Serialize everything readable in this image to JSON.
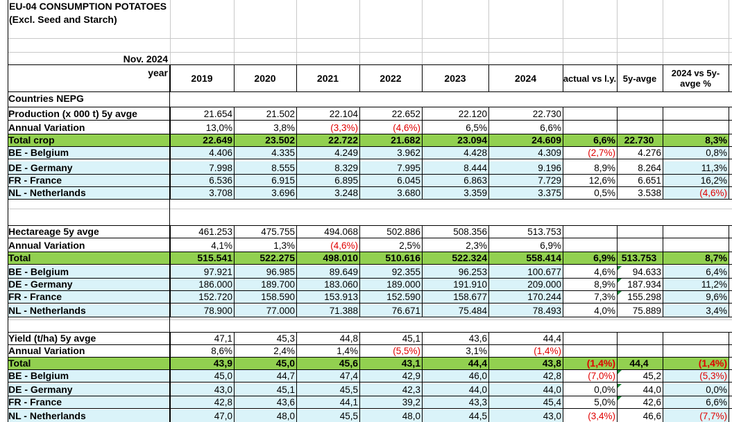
{
  "title": "EU-04 CONSUMPTION POTATOES (Excl. Seed and Starch)",
  "report_month": "Nov. 2024",
  "year_label": "year",
  "columns": [
    "2019",
    "2020",
    "2021",
    "2022",
    "2023",
    "2024",
    "actual vs l.y.",
    "5y-avge",
    "2024 vs 5y-avge %"
  ],
  "countries_label": "Countries NEPG",
  "sections": [
    {
      "rows": [
        {
          "label": "Production (x 000 t) 5y avge",
          "style": "plain",
          "values": [
            "21.654",
            "21.502",
            "22.104",
            "22.652",
            "22.120",
            "22.730",
            "",
            "",
            ""
          ]
        },
        {
          "label": "Annual Variation",
          "style": "plain",
          "values": [
            "13,0%",
            "3,8%",
            "(3,3%)",
            "(4,6%)",
            "6,5%",
            "6,6%",
            "",
            "",
            ""
          ]
        },
        {
          "label": "Total crop",
          "style": "total",
          "values": [
            "22.649",
            "23.502",
            "22.722",
            "21.682",
            "23.094",
            "24.609",
            "6,6%",
            "22.730",
            "8,3%"
          ]
        },
        {
          "label": "BE - Belgium",
          "style": "country",
          "values": [
            "4.406",
            "4.335",
            "4.249",
            "3.962",
            "4.428",
            "4.309",
            "(2,7%)",
            "4.276",
            "0,8%"
          ]
        },
        {
          "label": "DE - Germany",
          "style": "country",
          "values": [
            "7.998",
            "8.555",
            "8.329",
            "7.995",
            "8.444",
            "9.196",
            "8,9%",
            "8.264",
            "11,3%"
          ]
        },
        {
          "label": "FR - France",
          "style": "country",
          "values": [
            "6.536",
            "6.915",
            "6.895",
            "6.045",
            "6.863",
            "7.729",
            "12,6%",
            "6.651",
            "16,2%"
          ]
        },
        {
          "label": "NL - Netherlands",
          "style": "country",
          "values": [
            "3.708",
            "3.696",
            "3.248",
            "3.680",
            "3.359",
            "3.375",
            "0,5%",
            "3.538",
            "(4,6%)"
          ]
        }
      ]
    },
    {
      "rows": [
        {
          "label": "Hectareage 5y avge",
          "style": "plain",
          "values": [
            "461.253",
            "475.755",
            "494.068",
            "502.886",
            "508.356",
            "513.753",
            "",
            "",
            ""
          ]
        },
        {
          "label": "Annual Variation",
          "style": "plain",
          "values": [
            "4,1%",
            "1,3%",
            "(4,6%)",
            "2,5%",
            "2,3%",
            "6,9%",
            "",
            "",
            ""
          ]
        },
        {
          "label": "Total",
          "style": "total",
          "values": [
            "515.541",
            "522.275",
            "498.010",
            "510.616",
            "522.324",
            "558.414",
            "6,9%",
            "513.753",
            "8,7%"
          ]
        },
        {
          "label": "BE - Belgium",
          "style": "country",
          "values": [
            "97.921",
            "96.985",
            "89.649",
            "92.355",
            "96.253",
            "100.677",
            "4,6%",
            "94.633",
            "6,4%"
          ]
        },
        {
          "label": "DE - Germany",
          "style": "country",
          "values": [
            "186.000",
            "189.700",
            "183.060",
            "189.000",
            "191.910",
            "209.000",
            "8,9%",
            "187.934",
            "11,2%"
          ]
        },
        {
          "label": "FR - France",
          "style": "country",
          "values": [
            "152.720",
            "158.590",
            "153.913",
            "152.590",
            "158.677",
            "170.244",
            "7,3%",
            "155.298",
            "9,6%"
          ]
        },
        {
          "label": "NL - Netherlands",
          "style": "country",
          "values": [
            "78.900",
            "77.000",
            "71.388",
            "76.671",
            "75.484",
            "78.493",
            "4,0%",
            "75.889",
            "3,4%"
          ]
        }
      ]
    },
    {
      "rows": [
        {
          "label": "Yield (t/ha) 5y avge",
          "style": "plain",
          "values": [
            "47,1",
            "45,3",
            "44,8",
            "45,1",
            "43,6",
            "44,4",
            "",
            "",
            ""
          ]
        },
        {
          "label": "Annual Variation",
          "style": "plain",
          "values": [
            "8,6%",
            "2,4%",
            "1,4%",
            "(5,5%)",
            "3,1%",
            "(1,4%)",
            "",
            "",
            ""
          ]
        },
        {
          "label": "Total",
          "style": "total",
          "values": [
            "43,9",
            "45,0",
            "45,6",
            "43,1",
            "44,4",
            "43,8",
            "(1,4%)",
            "44,4",
            "(1,4%)"
          ]
        },
        {
          "label": "BE - Belgium",
          "style": "country",
          "values": [
            "45,0",
            "44,7",
            "47,4",
            "42,9",
            "46,0",
            "42,8",
            "(7,0%)",
            "45,2",
            "(5,3%)"
          ]
        },
        {
          "label": "DE - Germany",
          "style": "country",
          "values": [
            "43,0",
            "45,1",
            "45,5",
            "42,3",
            "44,0",
            "44,0",
            "0,0%",
            "44,0",
            "0,0%"
          ]
        },
        {
          "label": "FR - France",
          "style": "country",
          "values": [
            "42,8",
            "43,6",
            "44,1",
            "39,2",
            "43,3",
            "45,4",
            "5,0%",
            "42,6",
            "6,6%"
          ]
        },
        {
          "label": "NL - Netherlands",
          "style": "country",
          "values": [
            "47,0",
            "48,0",
            "45,5",
            "48,0",
            "44,5",
            "43,0",
            "(3,4%)",
            "46,6",
            "(7,7%)"
          ]
        }
      ]
    }
  ],
  "colors": {
    "total_row": "#92d050",
    "country_row": "#daf3f9",
    "negative": "#e00000",
    "comment_marker": "#1f8a3a"
  }
}
